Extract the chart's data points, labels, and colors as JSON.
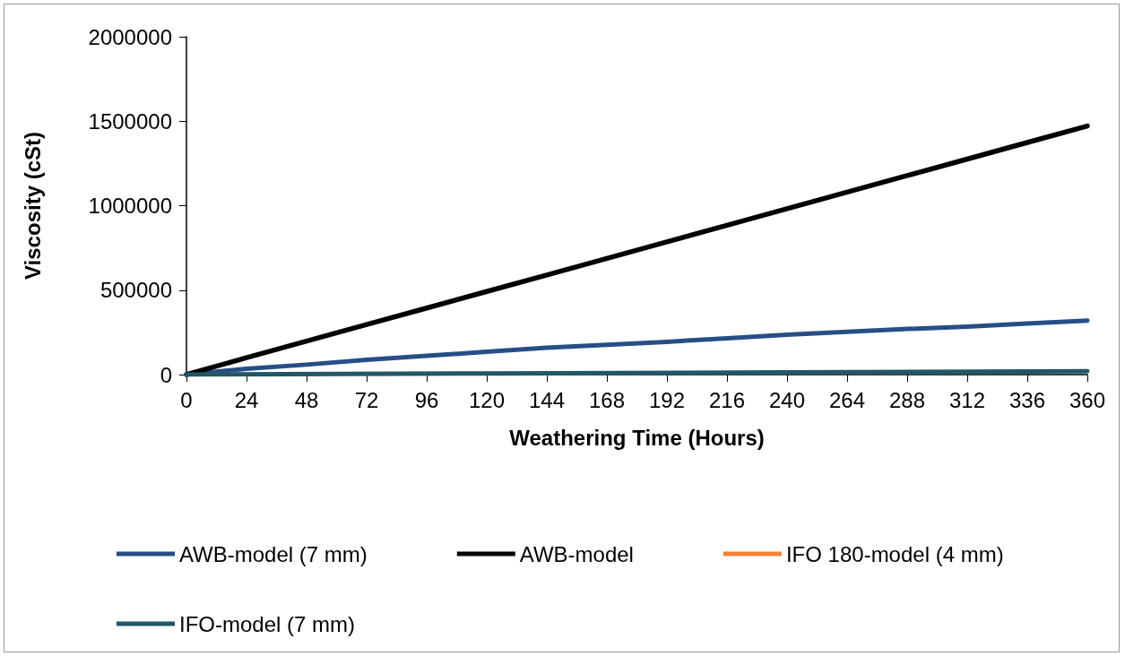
{
  "chart_data": {
    "type": "line",
    "xlabel": "Weathering Time (Hours)",
    "ylabel": "Viscosity (cSt)",
    "xlim": [
      0,
      360
    ],
    "xticks": [
      0,
      24,
      48,
      72,
      96,
      120,
      144,
      168,
      192,
      216,
      240,
      264,
      288,
      312,
      336,
      360
    ],
    "ylim": [
      0,
      2000000
    ],
    "yticks": [
      0,
      500000,
      1000000,
      1500000,
      2000000
    ],
    "grid": false,
    "legend": "bottom",
    "marker": "none",
    "line_style": "solid",
    "series": [
      {
        "name": "AWB-model (7 mm)",
        "color": "#264f86",
        "x": [
          0,
          24,
          48,
          72,
          96,
          120,
          144,
          168,
          192,
          216,
          240,
          264,
          288,
          312,
          336,
          360
        ],
        "values": [
          0,
          35000,
          59000,
          87000,
          111000,
          135000,
          159000,
          177000,
          194000,
          215000,
          236000,
          253000,
          270000,
          284000,
          302000,
          320000
        ]
      },
      {
        "name": "AWB-model",
        "color": "#000000",
        "x": [
          0,
          24,
          48,
          72,
          96,
          120,
          144,
          168,
          192,
          216,
          240,
          264,
          288,
          312,
          336,
          360
        ],
        "values": [
          0,
          100000,
          198000,
          296000,
          394000,
          492000,
          590000,
          688000,
          786000,
          884000,
          982000,
          1080000,
          1178000,
          1276000,
          1374000,
          1472000
        ]
      },
      {
        "name": "IFO 180-model (4 mm)",
        "color": "#f58231"
      },
      {
        "name": "IFO-model (7 mm)",
        "color": "#215868",
        "x": [
          0,
          120,
          240,
          360
        ],
        "values": [
          0,
          7000,
          13000,
          20000
        ]
      }
    ]
  }
}
